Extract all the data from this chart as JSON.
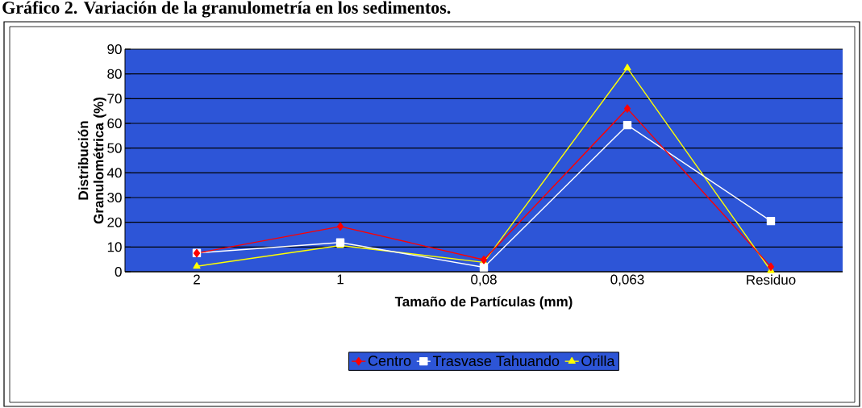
{
  "chart_data": {
    "type": "line",
    "title": "Gráfico 2.        Variación de la granulometría en los sedimentos.",
    "xlabel": "Tamaño de Partículas (mm)",
    "ylabel": "Distribución Granulométrica (%)",
    "categories": [
      "2",
      "1",
      "0,08",
      "0,063",
      "Residuo"
    ],
    "series": [
      {
        "name": "Centro",
        "color": "#ff0000",
        "marker": "diamond",
        "values": [
          7.5,
          18.3,
          4.8,
          66,
          2
        ]
      },
      {
        "name": "Trasvase Tahuando",
        "color": "#ffffff",
        "marker": "square",
        "values": [
          7.6,
          11.8,
          1.8,
          59.3,
          20.5
        ]
      },
      {
        "name": "Orilla",
        "color": "#ffff00",
        "marker": "triangle",
        "values": [
          2.2,
          10.6,
          3.8,
          82.4,
          0.4
        ]
      }
    ],
    "ylim": [
      0,
      90
    ],
    "yticks": [
      0,
      10,
      20,
      30,
      40,
      50,
      60,
      70,
      80,
      90
    ],
    "grid": "y",
    "legend": "bottom",
    "line_style": "solid"
  }
}
